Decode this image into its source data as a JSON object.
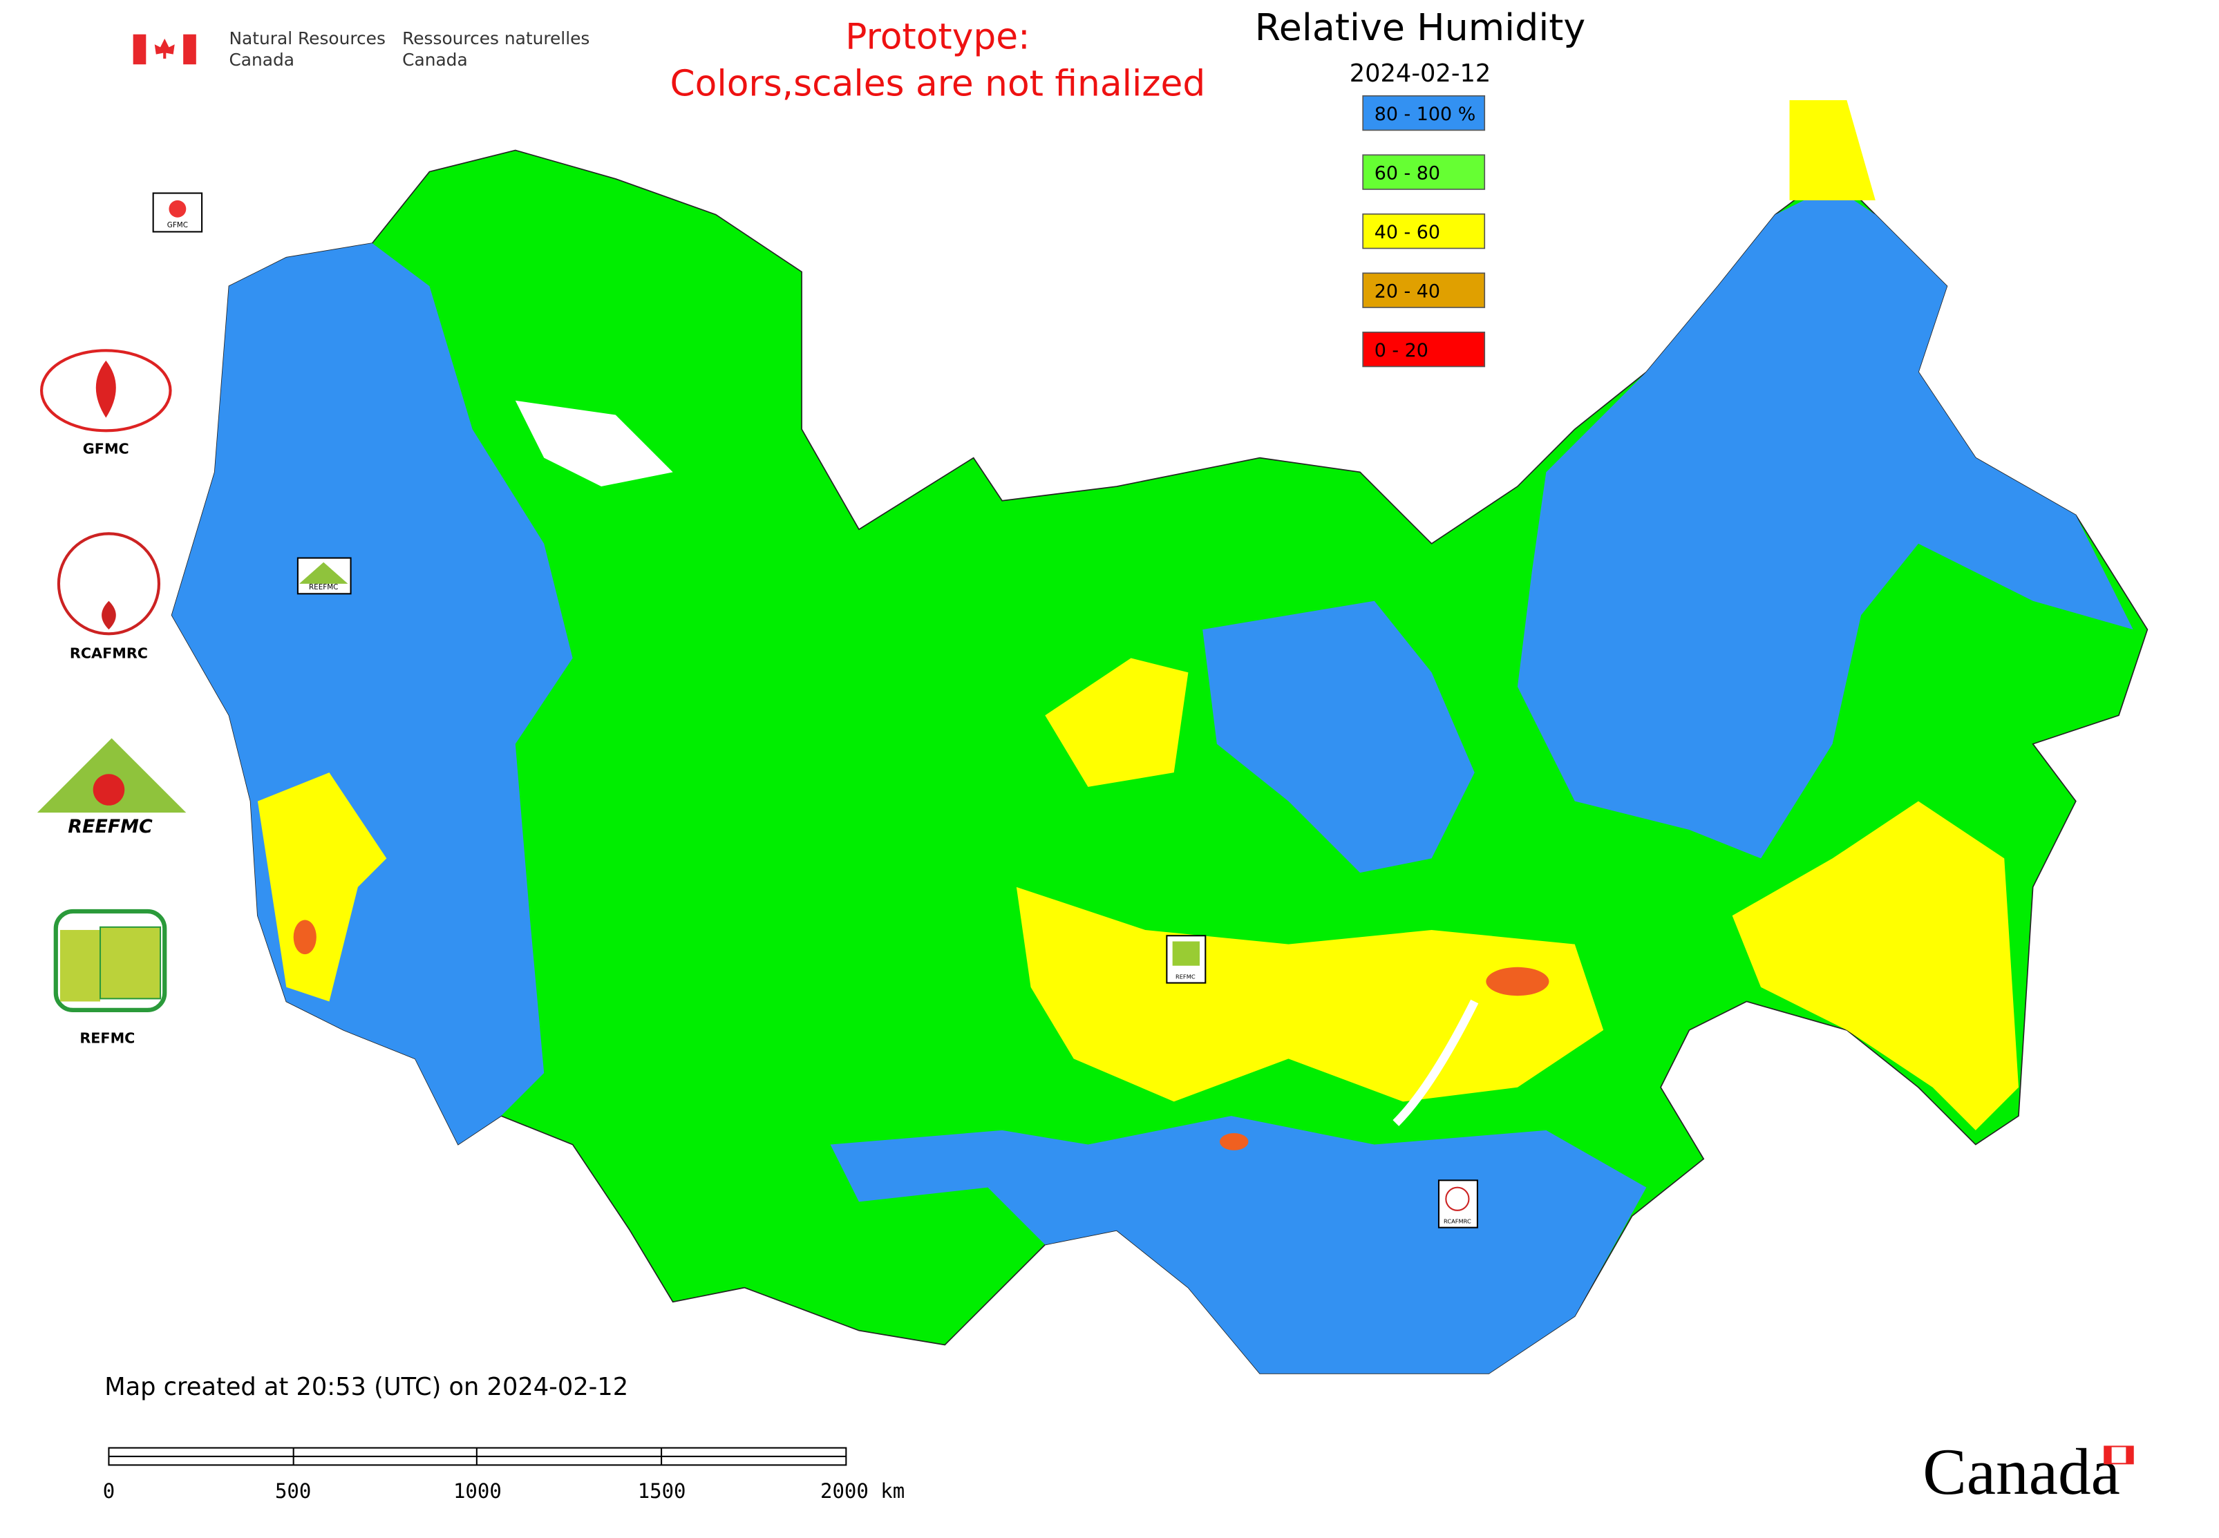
{
  "header": {
    "agency_en_1": "Natural Resources",
    "agency_en_2": "Canada",
    "agency_fr_1": "Ressources naturelles",
    "agency_fr_2": "Canada"
  },
  "notice": {
    "line1": "Prototype:",
    "line2": "Colors,scales are not finalized"
  },
  "title": "Relative Humidity",
  "date": "2024-02-12",
  "legend": [
    {
      "label": "80 - 100 %",
      "color": "#3391f2"
    },
    {
      "label": "60 - 80",
      "color": "#66ff33"
    },
    {
      "label": "40 - 60",
      "color": "#ffff00"
    },
    {
      "label": "20 - 40",
      "color": "#e0a000"
    },
    {
      "label": "0 - 20",
      "color": "#ff0000"
    }
  ],
  "logos": [
    "GFMC",
    "RCAFMRC",
    "REEFMC",
    "REFMC"
  ],
  "map_markers": [
    "GFMC",
    "REEFMC",
    "REFMC",
    "RCAFMRC"
  ],
  "footer": {
    "created": "Map created at 20:53 (UTC) on 2024-02-12",
    "scale_labels": [
      "0",
      "500",
      "1000",
      "1500",
      "2000 km"
    ],
    "wordmark": "Canada"
  }
}
